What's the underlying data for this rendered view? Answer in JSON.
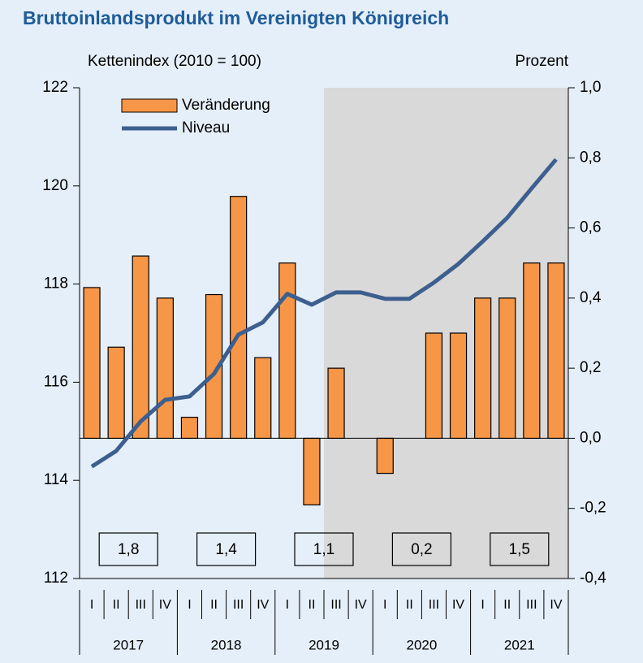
{
  "chart_data": {
    "type": "bar_line",
    "title": "Bruttoinlandsprodukt im Vereinigten Königreich",
    "y_label": "Kettenindex (2010 = 100)",
    "y2_label": "Prozent",
    "categories": [
      "I",
      "II",
      "III",
      "IV",
      "I",
      "II",
      "III",
      "IV",
      "I",
      "II",
      "III",
      "IV",
      "I",
      "II",
      "III",
      "IV",
      "I",
      "II",
      "III",
      "IV"
    ],
    "years": [
      "2017",
      "2018",
      "2019",
      "2020",
      "2021"
    ],
    "series": [
      {
        "name": "Veränderung",
        "type": "bar",
        "axis": "y2",
        "color": "#f79646",
        "values": [
          0.43,
          0.26,
          0.52,
          0.4,
          0.06,
          0.41,
          0.69,
          0.23,
          0.5,
          -0.19,
          0.2,
          0,
          -0.1,
          0,
          0.3,
          0.3,
          0.4,
          0.4,
          0.5,
          0.5
        ]
      },
      {
        "name": "Niveau",
        "type": "line",
        "axis": "y",
        "color": "#3d5f8f",
        "values": [
          114.28,
          114.6,
          115.2,
          115.64,
          115.71,
          116.17,
          116.97,
          117.22,
          117.8,
          117.58,
          117.83,
          117.83,
          117.7,
          117.7,
          118.03,
          118.41,
          118.87,
          119.35,
          119.95,
          120.54
        ]
      }
    ],
    "annual_growth": [
      {
        "value": 1.8,
        "label": "1,8"
      },
      {
        "value": 1.4,
        "label": "1,4"
      },
      {
        "value": 1.1,
        "label": "1,1"
      },
      {
        "value": 0.2,
        "label": "0,2"
      },
      {
        "value": 1.5,
        "label": "1,5"
      }
    ],
    "shaded_from": 10,
    "ylim": [
      112,
      122
    ],
    "yticks": [
      112,
      114,
      116,
      118,
      120,
      122
    ],
    "y2lim": [
      -0.4,
      1.0
    ],
    "y2ticks": [
      {
        "value": -0.4,
        "label": "-0,4"
      },
      {
        "value": -0.2,
        "label": "-0,2"
      },
      {
        "value": 0,
        "label": "0,0"
      },
      {
        "value": 0.2,
        "label": "0,2"
      },
      {
        "value": 0.4,
        "label": "0,4"
      },
      {
        "value": 0.6,
        "label": "0,6"
      },
      {
        "value": 0.8,
        "label": "0,8"
      },
      {
        "value": 1.0,
        "label": "1,0"
      }
    ]
  }
}
